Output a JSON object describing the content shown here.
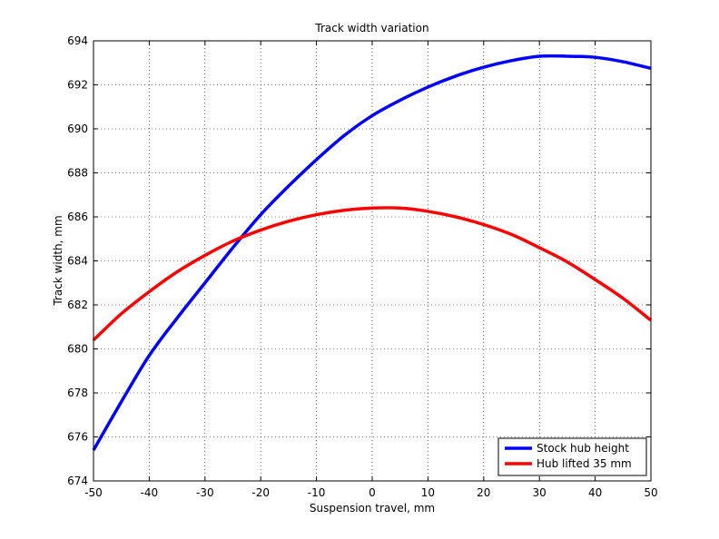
{
  "chart_data": {
    "type": "line",
    "title": "Track width variation",
    "xlabel": "Suspension travel, mm",
    "ylabel": "Track width, mm",
    "xlim": [
      -50,
      50
    ],
    "ylim": [
      674,
      694
    ],
    "xticks": [
      -50,
      -40,
      -30,
      -20,
      -10,
      0,
      10,
      20,
      30,
      40,
      50
    ],
    "yticks": [
      674,
      676,
      678,
      680,
      682,
      684,
      686,
      688,
      690,
      692,
      694
    ],
    "grid": "dotted",
    "legend_position": "bottom-right",
    "x": [
      -50,
      -45,
      -40,
      -35,
      -30,
      -25,
      -20,
      -15,
      -10,
      -5,
      0,
      5,
      10,
      15,
      20,
      25,
      30,
      35,
      40,
      45,
      50
    ],
    "series": [
      {
        "name": "Stock hub height",
        "color": "#0000ff",
        "values": [
          675.4,
          677.6,
          679.7,
          681.4,
          683.0,
          684.6,
          686.1,
          687.4,
          688.6,
          689.7,
          690.6,
          691.3,
          691.9,
          692.4,
          692.8,
          693.1,
          693.3,
          693.3,
          693.25,
          693.05,
          692.75
        ]
      },
      {
        "name": "Hub lifted 35 mm",
        "color": "#ff0000",
        "values": [
          680.4,
          681.6,
          682.6,
          683.5,
          684.25,
          684.9,
          685.4,
          685.8,
          686.1,
          686.3,
          686.4,
          686.4,
          686.25,
          686.0,
          685.65,
          685.2,
          684.6,
          683.95,
          683.15,
          682.3,
          681.3
        ]
      }
    ]
  }
}
